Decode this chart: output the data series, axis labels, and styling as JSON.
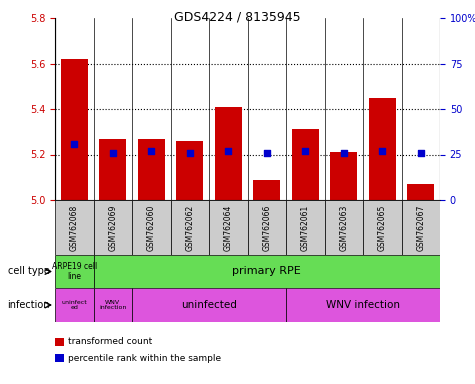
{
  "title": "GDS4224 / 8135945",
  "samples": [
    "GSM762068",
    "GSM762069",
    "GSM762060",
    "GSM762062",
    "GSM762064",
    "GSM762066",
    "GSM762061",
    "GSM762063",
    "GSM762065",
    "GSM762067"
  ],
  "transformed_counts": [
    5.62,
    5.27,
    5.27,
    5.26,
    5.41,
    5.09,
    5.31,
    5.21,
    5.45,
    5.07
  ],
  "percentile_ranks": [
    31,
    26,
    27,
    26,
    27,
    26,
    27,
    26,
    27,
    26
  ],
  "ylim_left": [
    5.0,
    5.8
  ],
  "ylim_right": [
    0,
    100
  ],
  "yticks_left": [
    5.0,
    5.2,
    5.4,
    5.6,
    5.8
  ],
  "yticks_right": [
    0,
    25,
    50,
    75,
    100
  ],
  "bar_color": "#cc0000",
  "dot_color": "#0000cc",
  "bar_bottom": 5.0,
  "label_color_left": "#cc0000",
  "label_color_right": "#0000cc",
  "cell_type_row_label": "cell type",
  "infection_row_label": "infection",
  "cell_type_color": "#66dd55",
  "infection_color": "#dd55dd",
  "sample_bg_color": "#cccccc",
  "legend_items": [
    {
      "color": "#cc0000",
      "label": "transformed count"
    },
    {
      "color": "#0000cc",
      "label": "percentile rank within the sample"
    }
  ]
}
